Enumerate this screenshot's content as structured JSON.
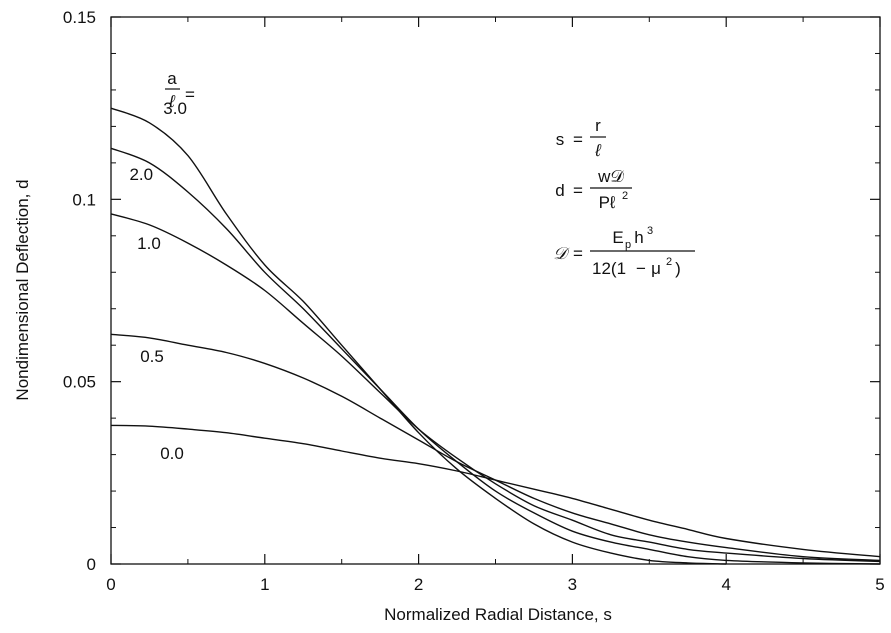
{
  "chart_data": {
    "type": "line",
    "xlabel": "Normalized Radial Distance, s",
    "ylabel": "Nondimensional Deflection, d",
    "xlim": [
      0,
      5
    ],
    "ylim": [
      0,
      0.15
    ],
    "x_ticks": [
      0,
      1,
      2,
      3,
      4,
      5
    ],
    "x_tick_labels": [
      "0",
      "1",
      "2",
      "3",
      "4",
      "5"
    ],
    "y_ticks": [
      0,
      0.05,
      0.1,
      0.15
    ],
    "y_tick_labels": [
      "0",
      "0.05",
      "0.1",
      "0.15"
    ],
    "grid": false,
    "curve_label_prefix": {
      "numerator": "a",
      "denominator": "ℓ",
      "equals": "="
    },
    "series": [
      {
        "name": "3.0",
        "x": [
          0,
          0.25,
          0.5,
          0.75,
          1.0,
          1.25,
          1.5,
          1.75,
          2.0,
          2.25,
          2.5,
          2.75,
          3.0,
          3.25,
          3.5,
          3.75,
          4.0
        ],
        "y": [
          0.125,
          0.121,
          0.112,
          0.096,
          0.082,
          0.072,
          0.06,
          0.048,
          0.036,
          0.026,
          0.018,
          0.011,
          0.006,
          0.003,
          0.001,
          0.0003,
          0.0
        ]
      },
      {
        "name": "2.0",
        "x": [
          0,
          0.25,
          0.5,
          0.75,
          1.0,
          1.25,
          1.5,
          1.75,
          2.0,
          2.25,
          2.5,
          2.75,
          3.0,
          3.25,
          3.5,
          3.75,
          4.0,
          4.5,
          5.0
        ],
        "y": [
          0.114,
          0.11,
          0.102,
          0.092,
          0.08,
          0.07,
          0.059,
          0.048,
          0.037,
          0.028,
          0.02,
          0.014,
          0.009,
          0.006,
          0.004,
          0.002,
          0.001,
          0.0003,
          0.0
        ]
      },
      {
        "name": "1.0",
        "x": [
          0,
          0.25,
          0.5,
          0.75,
          1.0,
          1.25,
          1.5,
          1.75,
          2.0,
          2.25,
          2.5,
          2.75,
          3.0,
          3.25,
          3.5,
          3.75,
          4.0,
          4.5,
          5.0
        ],
        "y": [
          0.096,
          0.093,
          0.088,
          0.082,
          0.075,
          0.066,
          0.057,
          0.047,
          0.037,
          0.029,
          0.022,
          0.016,
          0.012,
          0.008,
          0.006,
          0.004,
          0.003,
          0.0015,
          0.0007
        ]
      },
      {
        "name": "0.5",
        "x": [
          0,
          0.25,
          0.5,
          0.75,
          1.0,
          1.25,
          1.5,
          1.75,
          2.0,
          2.25,
          2.5,
          2.75,
          3.0,
          3.25,
          3.5,
          3.75,
          4.0,
          4.5,
          5.0
        ],
        "y": [
          0.063,
          0.062,
          0.06,
          0.058,
          0.055,
          0.051,
          0.046,
          0.04,
          0.034,
          0.028,
          0.023,
          0.018,
          0.014,
          0.011,
          0.008,
          0.006,
          0.0045,
          0.002,
          0.001
        ]
      },
      {
        "name": "0.0",
        "x": [
          0,
          0.25,
          0.5,
          0.75,
          1.0,
          1.25,
          1.5,
          1.75,
          2.0,
          2.25,
          2.5,
          2.75,
          3.0,
          3.25,
          3.5,
          3.75,
          4.0,
          4.5,
          5.0
        ],
        "y": [
          0.038,
          0.0378,
          0.037,
          0.036,
          0.0345,
          0.033,
          0.031,
          0.029,
          0.0275,
          0.0255,
          0.023,
          0.0205,
          0.018,
          0.015,
          0.012,
          0.0095,
          0.007,
          0.004,
          0.002
        ]
      }
    ],
    "annotations": {
      "s_def": {
        "lhs": "s",
        "eq": "=",
        "num": "r",
        "den": "ℓ"
      },
      "d_def": {
        "lhs": "d",
        "eq": "=",
        "num": "w𝒟",
        "den": "Pℓ",
        "den_sup": "2"
      },
      "D_def": {
        "lhs": "𝒟",
        "eq": "=",
        "num_base": "E",
        "num_sub": "p",
        "num_h": "h",
        "num_sup": "3",
        "den_a": "12(1",
        "den_minus": "−",
        "den_mu": "μ",
        "den_sup": "2",
        "den_b": ")"
      }
    }
  }
}
